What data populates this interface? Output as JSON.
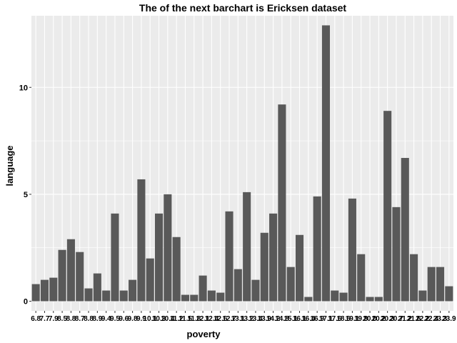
{
  "chart_data": {
    "type": "bar",
    "title": "The of the next barchart is Ericksen dataset",
    "xlabel": "poverty",
    "ylabel": "language",
    "ylim": [
      -0.45,
      13.35
    ],
    "yticks": [
      0,
      5,
      10
    ],
    "grid": true,
    "bar_color": "#595959",
    "panel_color": "#ebebeb",
    "grid_color": "#ffffff",
    "categories": [
      "6.8",
      "7.7",
      "7.9",
      "8.5",
      "8.8",
      "8.7",
      "8.8",
      "8.9",
      "9.4",
      "9.5",
      "9.6",
      "9.8",
      "9.9",
      "10.1",
      "10.3",
      "10.4",
      "11.2",
      "11.5",
      "11.8",
      "12.1",
      "12.4",
      "12.6",
      "12.7",
      "13.1",
      "13.2",
      "13.4",
      "13.9",
      "14.2",
      "14.8",
      "15.1",
      "16.1",
      "16.4",
      "16.9",
      "17.1",
      "17.6",
      "18.6",
      "19.1",
      "19.9",
      "20.0",
      "20.2",
      "20.3",
      "20.7",
      "21.2",
      "21.6",
      "22.2",
      "22.4",
      "23.3",
      "23.9"
    ],
    "values": [
      0.8,
      1.0,
      1.1,
      2.4,
      2.9,
      2.3,
      0.6,
      1.3,
      0.5,
      4.1,
      0.5,
      1.0,
      5.7,
      2.0,
      4.1,
      5.0,
      3.0,
      0.3,
      0.3,
      1.2,
      0.5,
      0.4,
      4.2,
      1.5,
      5.1,
      1.0,
      3.2,
      4.1,
      9.2,
      1.6,
      3.1,
      0.2,
      4.9,
      12.9,
      0.5,
      0.4,
      4.8,
      2.2,
      0.2,
      0.2,
      8.9,
      4.4,
      6.7,
      2.2,
      0.5,
      1.6,
      1.6,
      0.7
    ]
  }
}
